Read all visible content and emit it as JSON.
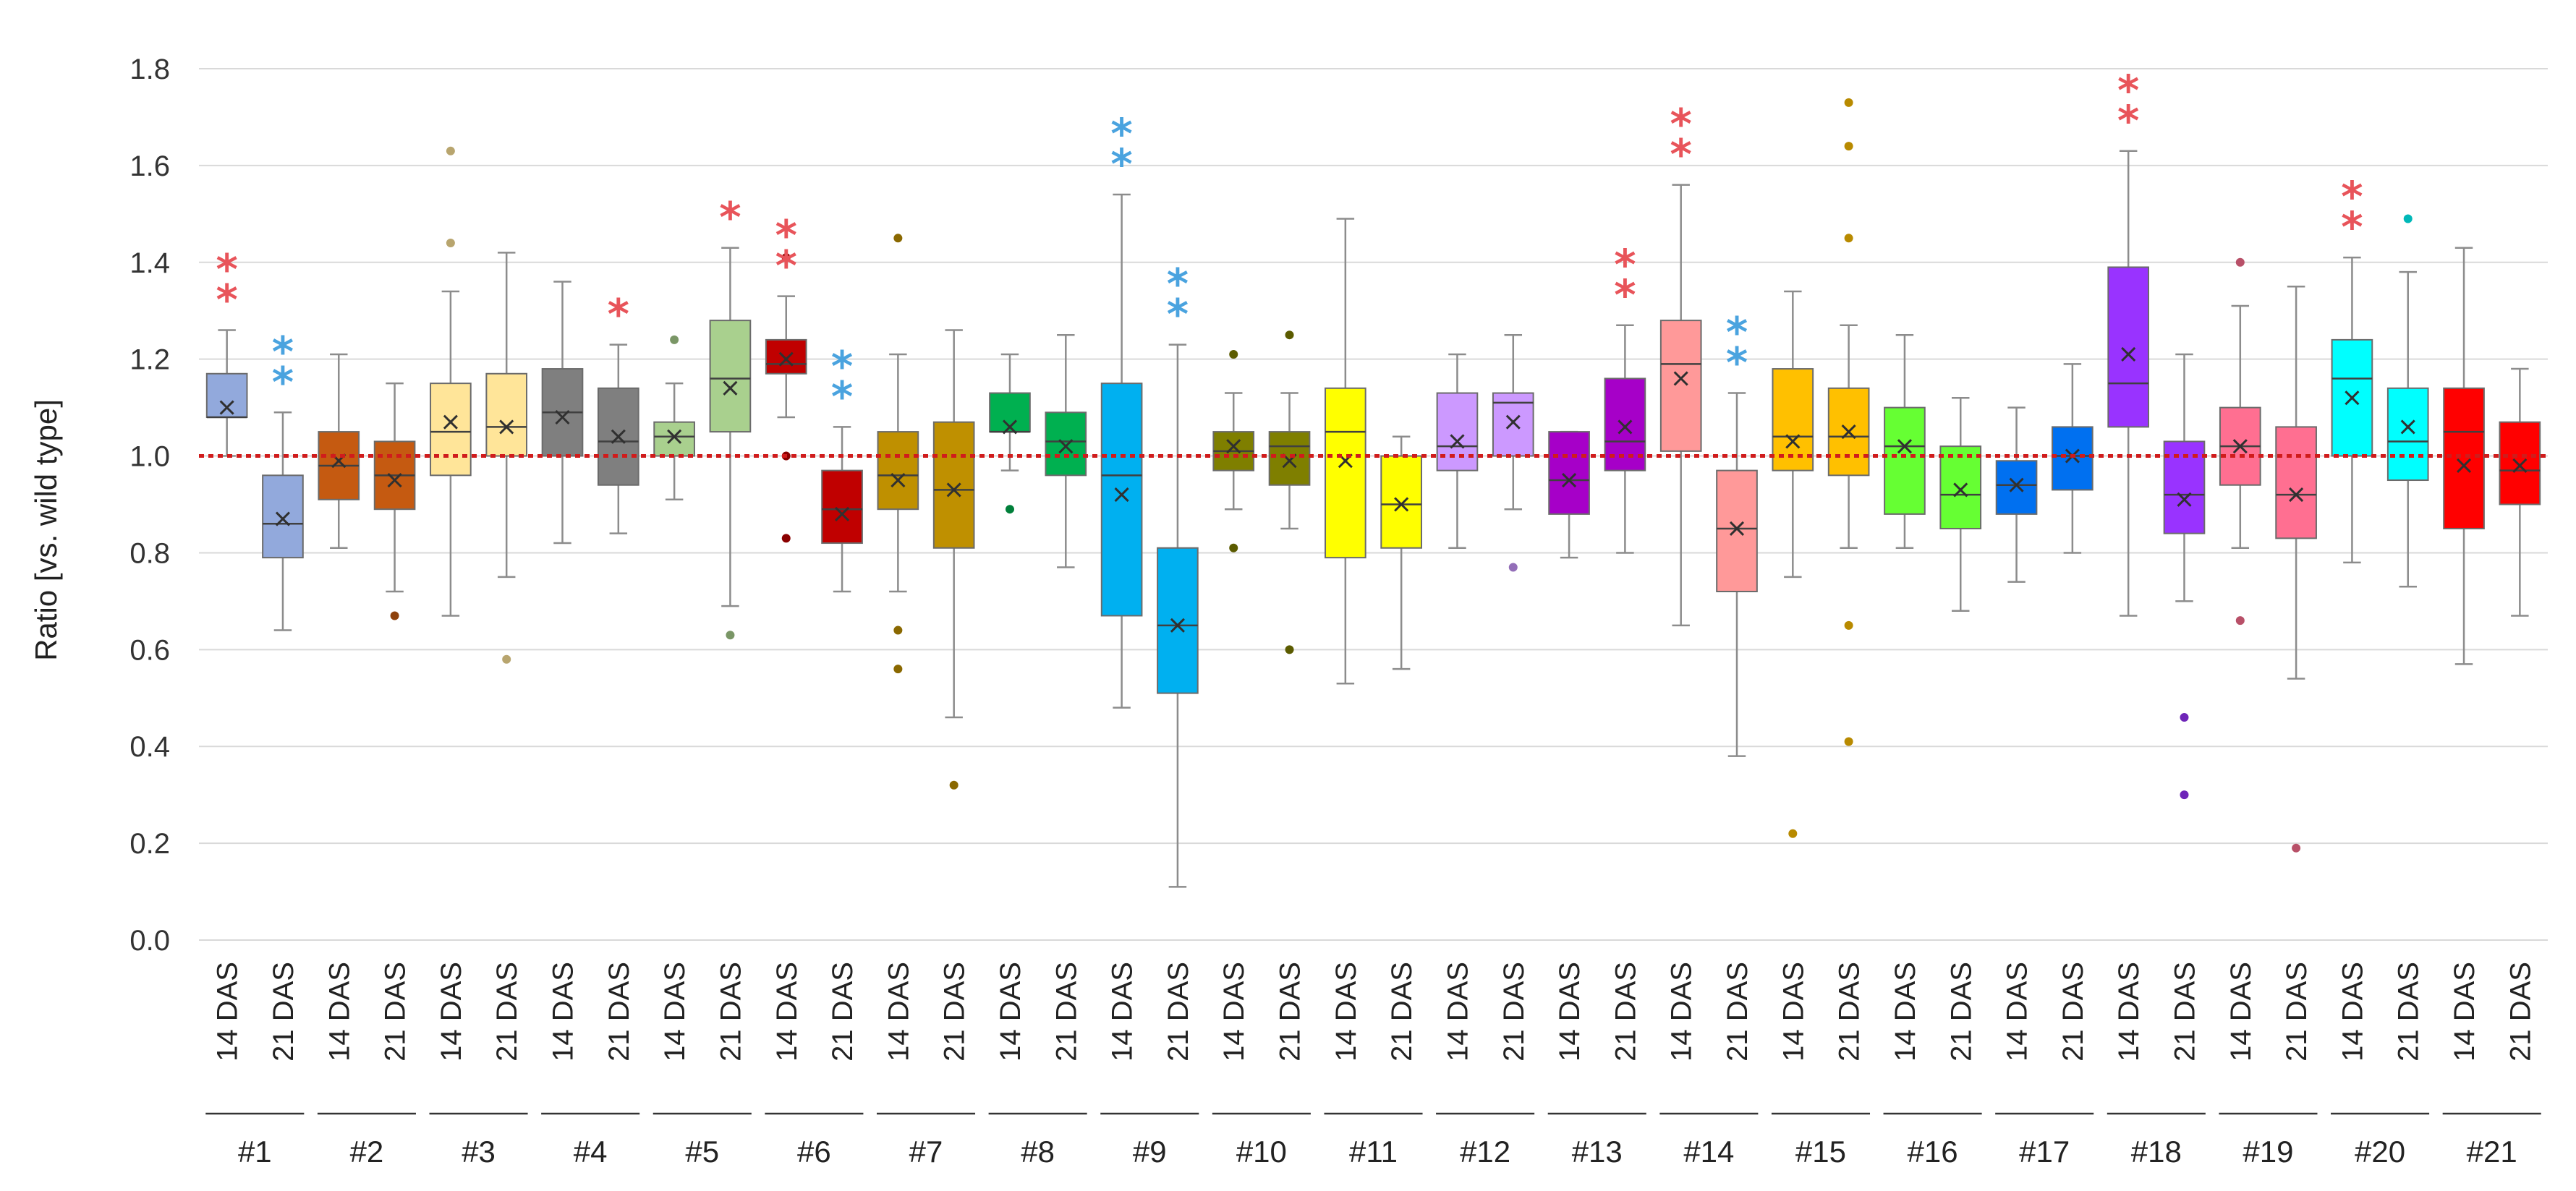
{
  "chart_data": {
    "type": "boxplot",
    "title": "",
    "xlabel": "",
    "ylabel": "Ratio [vs. wild type]",
    "ylim": [
      0,
      1.8
    ],
    "yticks": [
      "0.0",
      "0.2",
      "0.4",
      "0.6",
      "0.8",
      "1.0",
      "1.2",
      "1.4",
      "1.6",
      "1.8"
    ],
    "reference_line": {
      "value": 1.0,
      "style": "dotted",
      "color": "#d01c1c"
    },
    "grid": true,
    "star_colors": {
      "red": "#e8545a",
      "blue": "#4aa3df"
    },
    "groups": [
      {
        "label": "#1",
        "color": "#92a9dc",
        "boxes": [
          {
            "label": "14 DAS",
            "min": 1.0,
            "q1": 1.08,
            "median": 1.08,
            "q3": 1.17,
            "max": 1.26,
            "mean": 1.1,
            "outliers": [],
            "stars": {
              "count": 2,
              "color": "red"
            }
          },
          {
            "label": "21 DAS",
            "min": 0.64,
            "q1": 0.79,
            "median": 0.86,
            "q3": 0.96,
            "max": 1.09,
            "mean": 0.87,
            "outliers": [],
            "stars": {
              "count": 2,
              "color": "blue"
            }
          }
        ]
      },
      {
        "label": "#2",
        "color": "#c55a11",
        "boxes": [
          {
            "label": "14 DAS",
            "min": 0.81,
            "q1": 0.91,
            "median": 0.98,
            "q3": 1.05,
            "max": 1.21,
            "mean": 0.99,
            "outliers": [],
            "stars": null
          },
          {
            "label": "21 DAS",
            "min": 0.72,
            "q1": 0.89,
            "median": 0.96,
            "q3": 1.03,
            "max": 1.15,
            "mean": 0.95,
            "outliers": [
              0.67
            ],
            "stars": null
          }
        ]
      },
      {
        "label": "#3",
        "color": "#ffe599",
        "boxes": [
          {
            "label": "14 DAS",
            "min": 0.67,
            "q1": 0.96,
            "median": 1.05,
            "q3": 1.15,
            "max": 1.34,
            "mean": 1.07,
            "outliers": [
              1.63,
              1.44
            ],
            "stars": null
          },
          {
            "label": "21 DAS",
            "min": 0.75,
            "q1": 1.0,
            "median": 1.06,
            "q3": 1.17,
            "max": 1.42,
            "mean": 1.06,
            "outliers": [
              0.58
            ],
            "stars": null
          }
        ]
      },
      {
        "label": "#4",
        "color": "#7f7f7f",
        "boxes": [
          {
            "label": "14 DAS",
            "min": 0.82,
            "q1": 1.0,
            "median": 1.09,
            "q3": 1.18,
            "max": 1.36,
            "mean": 1.08,
            "outliers": [],
            "stars": null
          },
          {
            "label": "21 DAS",
            "min": 0.84,
            "q1": 0.94,
            "median": 1.03,
            "q3": 1.14,
            "max": 1.23,
            "mean": 1.04,
            "outliers": [],
            "stars": {
              "count": 1,
              "color": "red"
            }
          }
        ]
      },
      {
        "label": "#5",
        "color": "#a9d08e",
        "boxes": [
          {
            "label": "14 DAS",
            "min": 0.91,
            "q1": 1.0,
            "median": 1.04,
            "q3": 1.07,
            "max": 1.15,
            "mean": 1.04,
            "outliers": [
              1.24
            ],
            "stars": null
          },
          {
            "label": "21 DAS",
            "min": 0.69,
            "q1": 1.05,
            "median": 1.16,
            "q3": 1.28,
            "max": 1.43,
            "mean": 1.14,
            "outliers": [
              0.63
            ],
            "stars": {
              "count": 1,
              "color": "red"
            }
          }
        ]
      },
      {
        "label": "#6",
        "color": "#c00000",
        "boxes": [
          {
            "label": "14 DAS",
            "min": 1.08,
            "q1": 1.17,
            "median": 1.19,
            "q3": 1.24,
            "max": 1.33,
            "mean": 1.2,
            "outliers": [
              1.41,
              1.0,
              0.83
            ],
            "stars": {
              "count": 2,
              "color": "red"
            }
          },
          {
            "label": "21 DAS",
            "min": 0.72,
            "q1": 0.82,
            "median": 0.89,
            "q3": 0.97,
            "max": 1.06,
            "mean": 0.88,
            "outliers": [],
            "stars": {
              "count": 2,
              "color": "blue"
            }
          }
        ]
      },
      {
        "label": "#7",
        "color": "#bf9000",
        "boxes": [
          {
            "label": "14 DAS",
            "min": 0.72,
            "q1": 0.89,
            "median": 0.96,
            "q3": 1.05,
            "max": 1.21,
            "mean": 0.95,
            "outliers": [
              1.45,
              0.64,
              0.56
            ],
            "stars": null
          },
          {
            "label": "21 DAS",
            "min": 0.46,
            "q1": 0.81,
            "median": 0.93,
            "q3": 1.07,
            "max": 1.26,
            "mean": 0.93,
            "outliers": [
              0.32
            ],
            "stars": null
          }
        ]
      },
      {
        "label": "#8",
        "color": "#00b050",
        "boxes": [
          {
            "label": "14 DAS",
            "min": 0.97,
            "q1": 1.05,
            "median": 1.05,
            "q3": 1.13,
            "max": 1.21,
            "mean": 1.06,
            "outliers": [
              0.89
            ],
            "stars": null
          },
          {
            "label": "21 DAS",
            "min": 0.77,
            "q1": 0.96,
            "median": 1.03,
            "q3": 1.09,
            "max": 1.25,
            "mean": 1.02,
            "outliers": [],
            "stars": null
          }
        ]
      },
      {
        "label": "#9",
        "color": "#00b0f0",
        "boxes": [
          {
            "label": "14 DAS",
            "min": 0.48,
            "q1": 0.67,
            "median": 0.96,
            "q3": 1.15,
            "max": 1.54,
            "mean": 0.92,
            "outliers": [],
            "stars": {
              "count": 2,
              "color": "blue"
            }
          },
          {
            "label": "21 DAS",
            "min": 0.11,
            "q1": 0.51,
            "median": 0.65,
            "q3": 0.81,
            "max": 1.23,
            "mean": 0.65,
            "outliers": [],
            "stars": {
              "count": 2,
              "color": "blue"
            }
          }
        ]
      },
      {
        "label": "#10",
        "color": "#7f7f00",
        "boxes": [
          {
            "label": "14 DAS",
            "min": 0.89,
            "q1": 0.97,
            "median": 1.01,
            "q3": 1.05,
            "max": 1.13,
            "mean": 1.02,
            "outliers": [
              1.21,
              0.81
            ],
            "stars": null
          },
          {
            "label": "21 DAS",
            "min": 0.85,
            "q1": 0.94,
            "median": 1.02,
            "q3": 1.05,
            "max": 1.13,
            "mean": 0.99,
            "outliers": [
              1.25,
              0.6
            ],
            "stars": null
          }
        ]
      },
      {
        "label": "#11",
        "color": "#ffff00",
        "boxes": [
          {
            "label": "14 DAS",
            "min": 0.53,
            "q1": 0.79,
            "median": 1.05,
            "q3": 1.14,
            "max": 1.49,
            "mean": 0.99,
            "outliers": [],
            "stars": null
          },
          {
            "label": "21 DAS",
            "min": 0.56,
            "q1": 0.81,
            "median": 0.9,
            "q3": 1.0,
            "max": 1.04,
            "mean": 0.9,
            "outliers": [],
            "stars": null
          }
        ]
      },
      {
        "label": "#12",
        "color": "#cc99ff",
        "boxes": [
          {
            "label": "14 DAS",
            "min": 0.81,
            "q1": 0.97,
            "median": 1.02,
            "q3": 1.13,
            "max": 1.21,
            "mean": 1.03,
            "outliers": [],
            "stars": null
          },
          {
            "label": "21 DAS",
            "min": 0.89,
            "q1": 1.0,
            "median": 1.11,
            "q3": 1.13,
            "max": 1.25,
            "mean": 1.07,
            "outliers": [
              0.77
            ],
            "stars": null
          }
        ]
      },
      {
        "label": "#13",
        "color": "#a600c8",
        "boxes": [
          {
            "label": "14 DAS",
            "min": 0.79,
            "q1": 0.88,
            "median": 0.95,
            "q3": 1.05,
            "max": 1.05,
            "mean": 0.95,
            "outliers": [],
            "stars": null
          },
          {
            "label": "21 DAS",
            "min": 0.8,
            "q1": 0.97,
            "median": 1.03,
            "q3": 1.16,
            "max": 1.27,
            "mean": 1.06,
            "outliers": [],
            "stars": {
              "count": 2,
              "color": "red"
            }
          }
        ]
      },
      {
        "label": "#14",
        "color": "#ff9999",
        "boxes": [
          {
            "label": "14 DAS",
            "min": 0.65,
            "q1": 1.01,
            "median": 1.19,
            "q3": 1.28,
            "max": 1.56,
            "mean": 1.16,
            "outliers": [],
            "stars": {
              "count": 2,
              "color": "red"
            }
          },
          {
            "label": "21 DAS",
            "min": 0.38,
            "q1": 0.72,
            "median": 0.85,
            "q3": 0.97,
            "max": 1.13,
            "mean": 0.85,
            "outliers": [],
            "stars": {
              "count": 2,
              "color": "blue"
            }
          }
        ]
      },
      {
        "label": "#15",
        "color": "#ffc000",
        "boxes": [
          {
            "label": "14 DAS",
            "min": 0.75,
            "q1": 0.97,
            "median": 1.04,
            "q3": 1.18,
            "max": 1.34,
            "mean": 1.03,
            "outliers": [
              0.22
            ],
            "stars": null
          },
          {
            "label": "21 DAS",
            "min": 0.81,
            "q1": 0.96,
            "median": 1.04,
            "q3": 1.14,
            "max": 1.27,
            "mean": 1.05,
            "outliers": [
              1.73,
              1.64,
              1.45,
              0.65,
              0.41
            ],
            "stars": null
          }
        ]
      },
      {
        "label": "#16",
        "color": "#66ff33",
        "boxes": [
          {
            "label": "14 DAS",
            "min": 0.81,
            "q1": 0.88,
            "median": 1.02,
            "q3": 1.1,
            "max": 1.25,
            "mean": 1.02,
            "outliers": [],
            "stars": null
          },
          {
            "label": "21 DAS",
            "min": 0.68,
            "q1": 0.85,
            "median": 0.92,
            "q3": 1.02,
            "max": 1.12,
            "mean": 0.93,
            "outliers": [],
            "stars": null
          }
        ]
      },
      {
        "label": "#17",
        "color": "#0070f0",
        "boxes": [
          {
            "label": "14 DAS",
            "min": 0.74,
            "q1": 0.88,
            "median": 0.94,
            "q3": 0.99,
            "max": 1.1,
            "mean": 0.94,
            "outliers": [],
            "stars": null
          },
          {
            "label": "21 DAS",
            "min": 0.8,
            "q1": 0.93,
            "median": 1.0,
            "q3": 1.06,
            "max": 1.19,
            "mean": 1.0,
            "outliers": [],
            "stars": null
          }
        ]
      },
      {
        "label": "#18",
        "color": "#9933ff",
        "boxes": [
          {
            "label": "14 DAS",
            "min": 0.67,
            "q1": 1.06,
            "median": 1.15,
            "q3": 1.39,
            "max": 1.63,
            "mean": 1.21,
            "outliers": [],
            "stars": {
              "count": 2,
              "color": "red"
            }
          },
          {
            "label": "21 DAS",
            "min": 0.7,
            "q1": 0.84,
            "median": 0.92,
            "q3": 1.03,
            "max": 1.21,
            "mean": 0.91,
            "outliers": [
              0.46,
              0.3
            ],
            "stars": null
          }
        ]
      },
      {
        "label": "#19",
        "color": "#ff6f91",
        "boxes": [
          {
            "label": "14 DAS",
            "min": 0.81,
            "q1": 0.94,
            "median": 1.02,
            "q3": 1.1,
            "max": 1.31,
            "mean": 1.02,
            "outliers": [
              1.4,
              0.66
            ],
            "stars": null
          },
          {
            "label": "21 DAS",
            "min": 0.54,
            "q1": 0.83,
            "median": 0.92,
            "q3": 1.06,
            "max": 1.35,
            "mean": 0.92,
            "outliers": [
              0.19
            ],
            "stars": null
          }
        ]
      },
      {
        "label": "#20",
        "color": "#00ffff",
        "boxes": [
          {
            "label": "14 DAS",
            "min": 0.78,
            "q1": 1.0,
            "median": 1.16,
            "q3": 1.24,
            "max": 1.41,
            "mean": 1.12,
            "outliers": [],
            "stars": {
              "count": 2,
              "color": "red"
            }
          },
          {
            "label": "21 DAS",
            "min": 0.73,
            "q1": 0.95,
            "median": 1.03,
            "q3": 1.14,
            "max": 1.38,
            "mean": 1.06,
            "outliers": [
              1.49
            ],
            "stars": null
          }
        ]
      },
      {
        "label": "#21",
        "color": "#ff0000",
        "boxes": [
          {
            "label": "14 DAS",
            "min": 0.57,
            "q1": 0.85,
            "median": 1.05,
            "q3": 1.14,
            "max": 1.43,
            "mean": 0.98,
            "outliers": [],
            "stars": null
          },
          {
            "label": "21 DAS",
            "min": 0.67,
            "q1": 0.9,
            "median": 0.97,
            "q3": 1.07,
            "max": 1.18,
            "mean": 0.98,
            "outliers": [],
            "stars": null
          }
        ]
      }
    ]
  }
}
